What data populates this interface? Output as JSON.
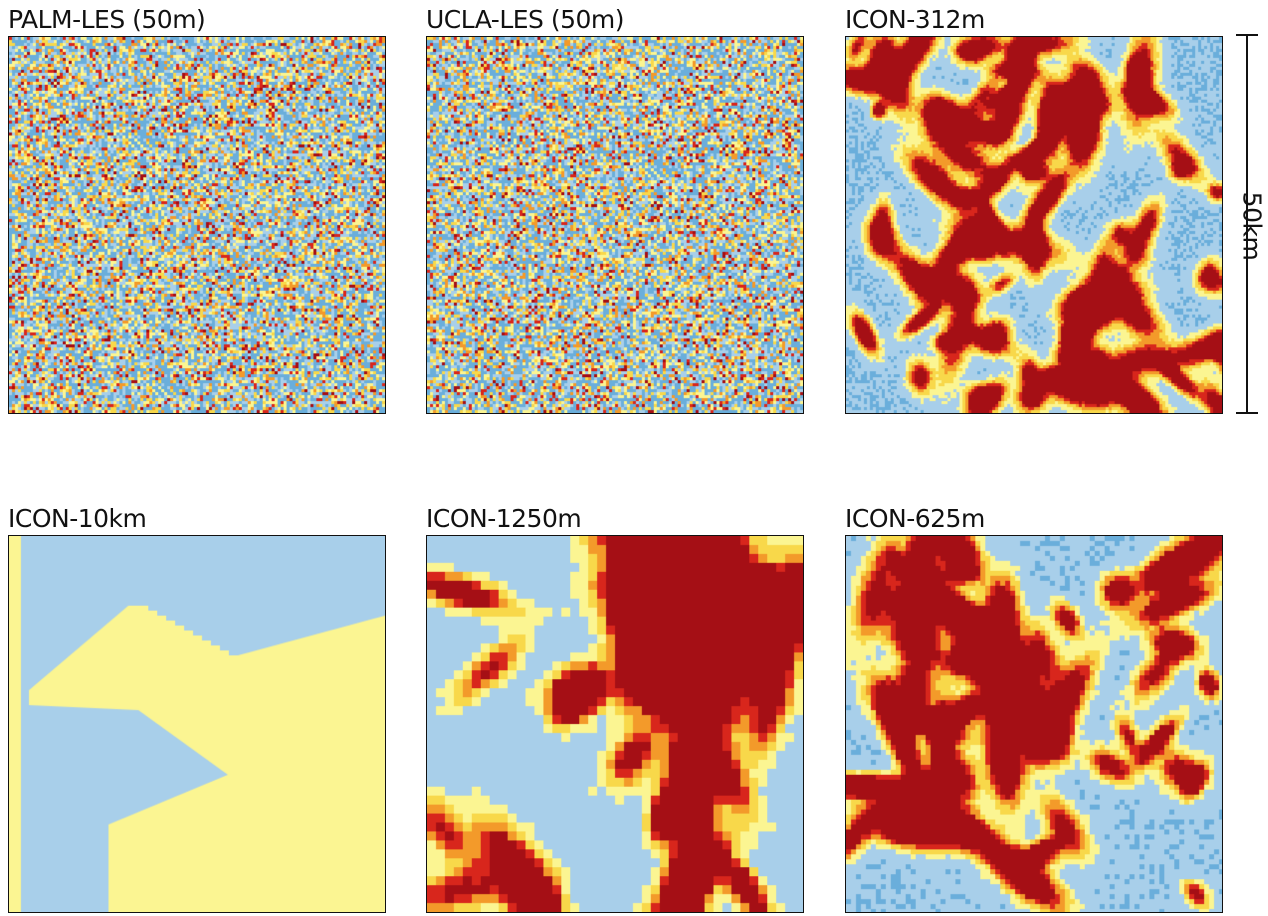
{
  "panels": [
    {
      "id": "palm",
      "title": "PALM-LES (50m)",
      "pattern": "fine-noise"
    },
    {
      "id": "ucla",
      "title": "UCLA-LES (50m)",
      "pattern": "fine-noise"
    },
    {
      "id": "icon312",
      "title": "ICON-312m",
      "pattern": "cells-fine"
    },
    {
      "id": "icon10",
      "title": "ICON-10km",
      "pattern": "blocky-two-region"
    },
    {
      "id": "icon1250",
      "title": "ICON-1250m",
      "pattern": "bands-coarse"
    },
    {
      "id": "icon625",
      "title": "ICON-625m",
      "pattern": "cells-medium"
    }
  ],
  "scale": {
    "label": "50km"
  },
  "colors": {
    "light_blue": "#a8cfea",
    "mid_blue": "#6aaedb",
    "dark_blue": "#3e7fc8",
    "pale_yellow": "#fbf592",
    "yellow": "#f8d84a",
    "orange": "#f39a2a",
    "red": "#d8261c",
    "dark_red": "#a50f15"
  }
}
